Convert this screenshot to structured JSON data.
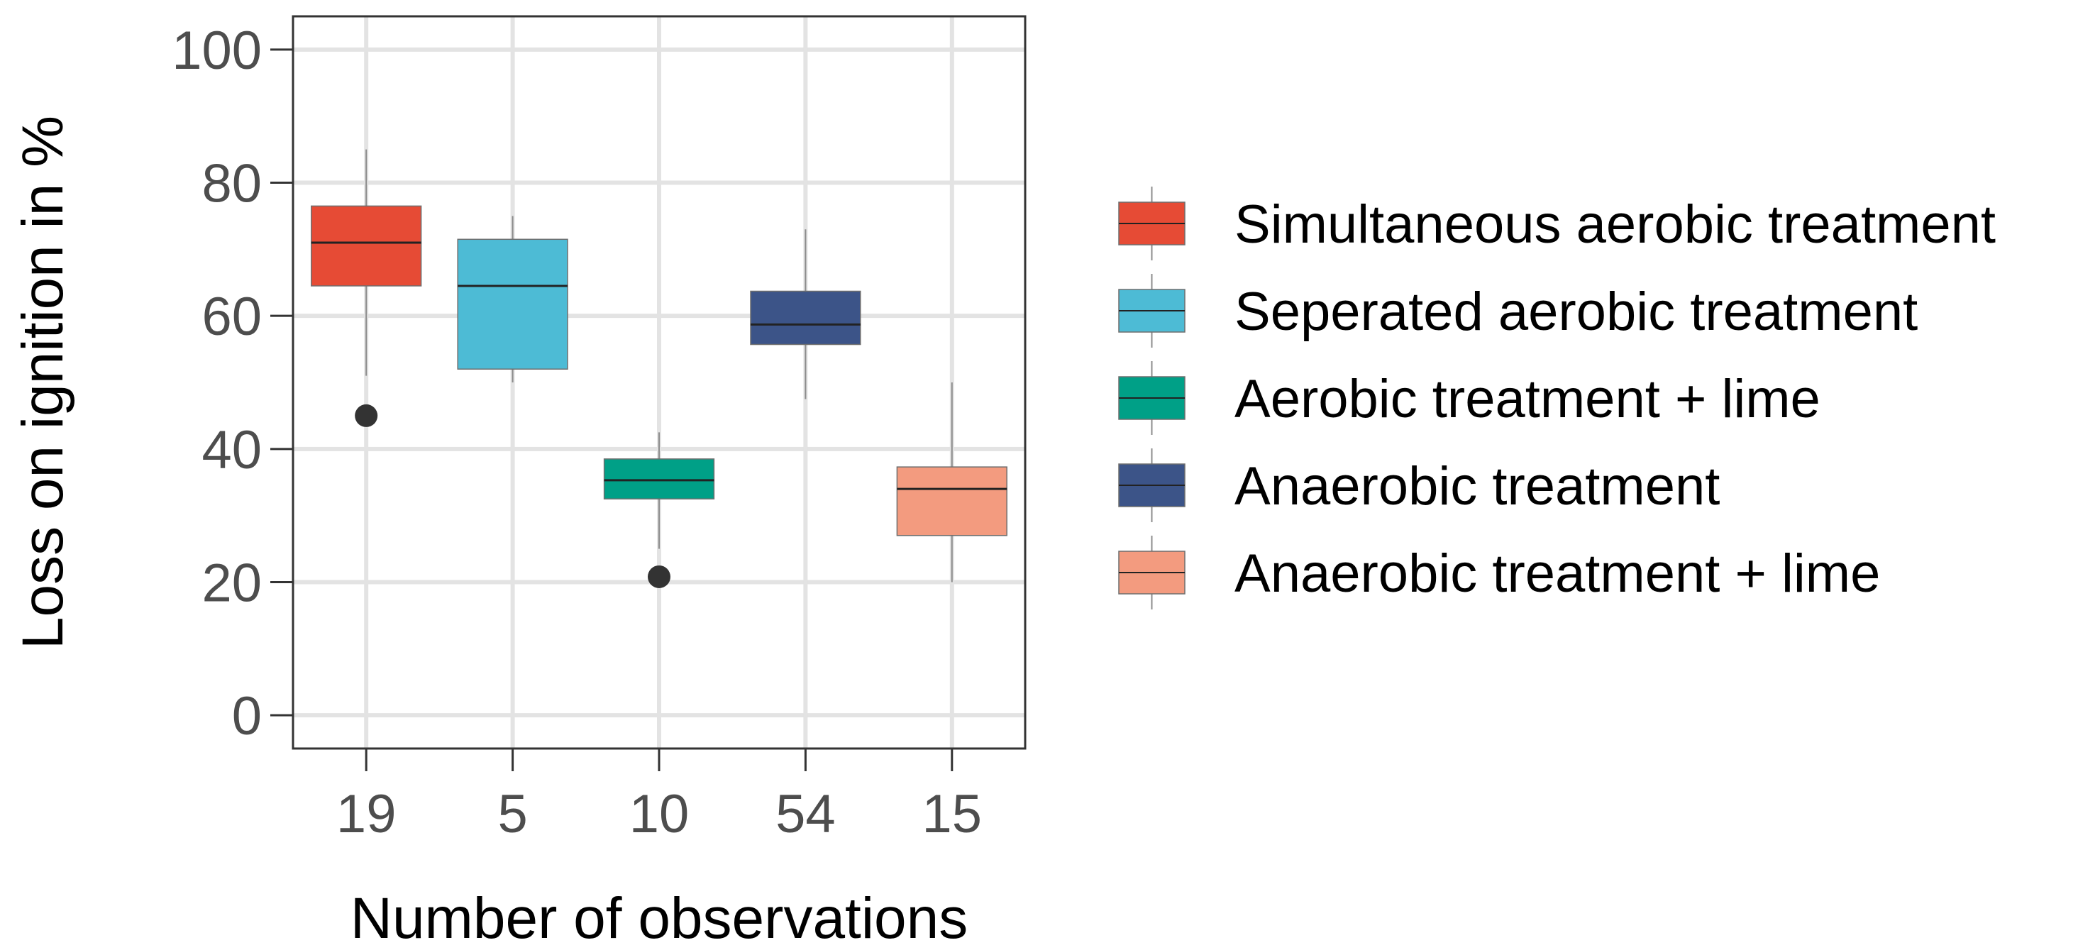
{
  "chart_data": {
    "type": "boxplot",
    "title": "",
    "xlabel": "Number of observations",
    "ylabel": "Loss on ignition in %",
    "ylim": [
      -5,
      105
    ],
    "yticks": [
      0,
      20,
      40,
      60,
      80,
      100
    ],
    "grid": true,
    "legend_position": "right",
    "categories": [
      "19",
      "5",
      "10",
      "54",
      "15"
    ],
    "series": [
      {
        "name": "Simultaneous aerobic treatment",
        "color": "#E64B35",
        "category": "19",
        "whisker_low": 51,
        "q1": 64.5,
        "median": 71,
        "q3": 76.5,
        "whisker_high": 85,
        "outliers": [
          45
        ]
      },
      {
        "name": "Seperated aerobic treatment",
        "color": "#4DBBD5",
        "category": "5",
        "whisker_low": 50,
        "q1": 52,
        "median": 64.5,
        "q3": 71.5,
        "whisker_high": 75,
        "outliers": []
      },
      {
        "name": "Aerobic treatment + lime",
        "color": "#00A087",
        "category": "10",
        "whisker_low": 25,
        "q1": 32.5,
        "median": 35.3,
        "q3": 38.5,
        "whisker_high": 42.5,
        "outliers": [
          20.8
        ]
      },
      {
        "name": "Anaerobic treatment",
        "color": "#3C5488",
        "category": "54",
        "whisker_low": 47.5,
        "q1": 55.7,
        "median": 58.7,
        "q3": 63.7,
        "whisker_high": 73,
        "outliers": []
      },
      {
        "name": "Anaerobic treatment + lime",
        "color": "#F39B7F",
        "category": "15",
        "whisker_low": 20,
        "q1": 27,
        "median": 34,
        "q3": 37.3,
        "whisker_high": 50,
        "outliers": []
      }
    ]
  }
}
